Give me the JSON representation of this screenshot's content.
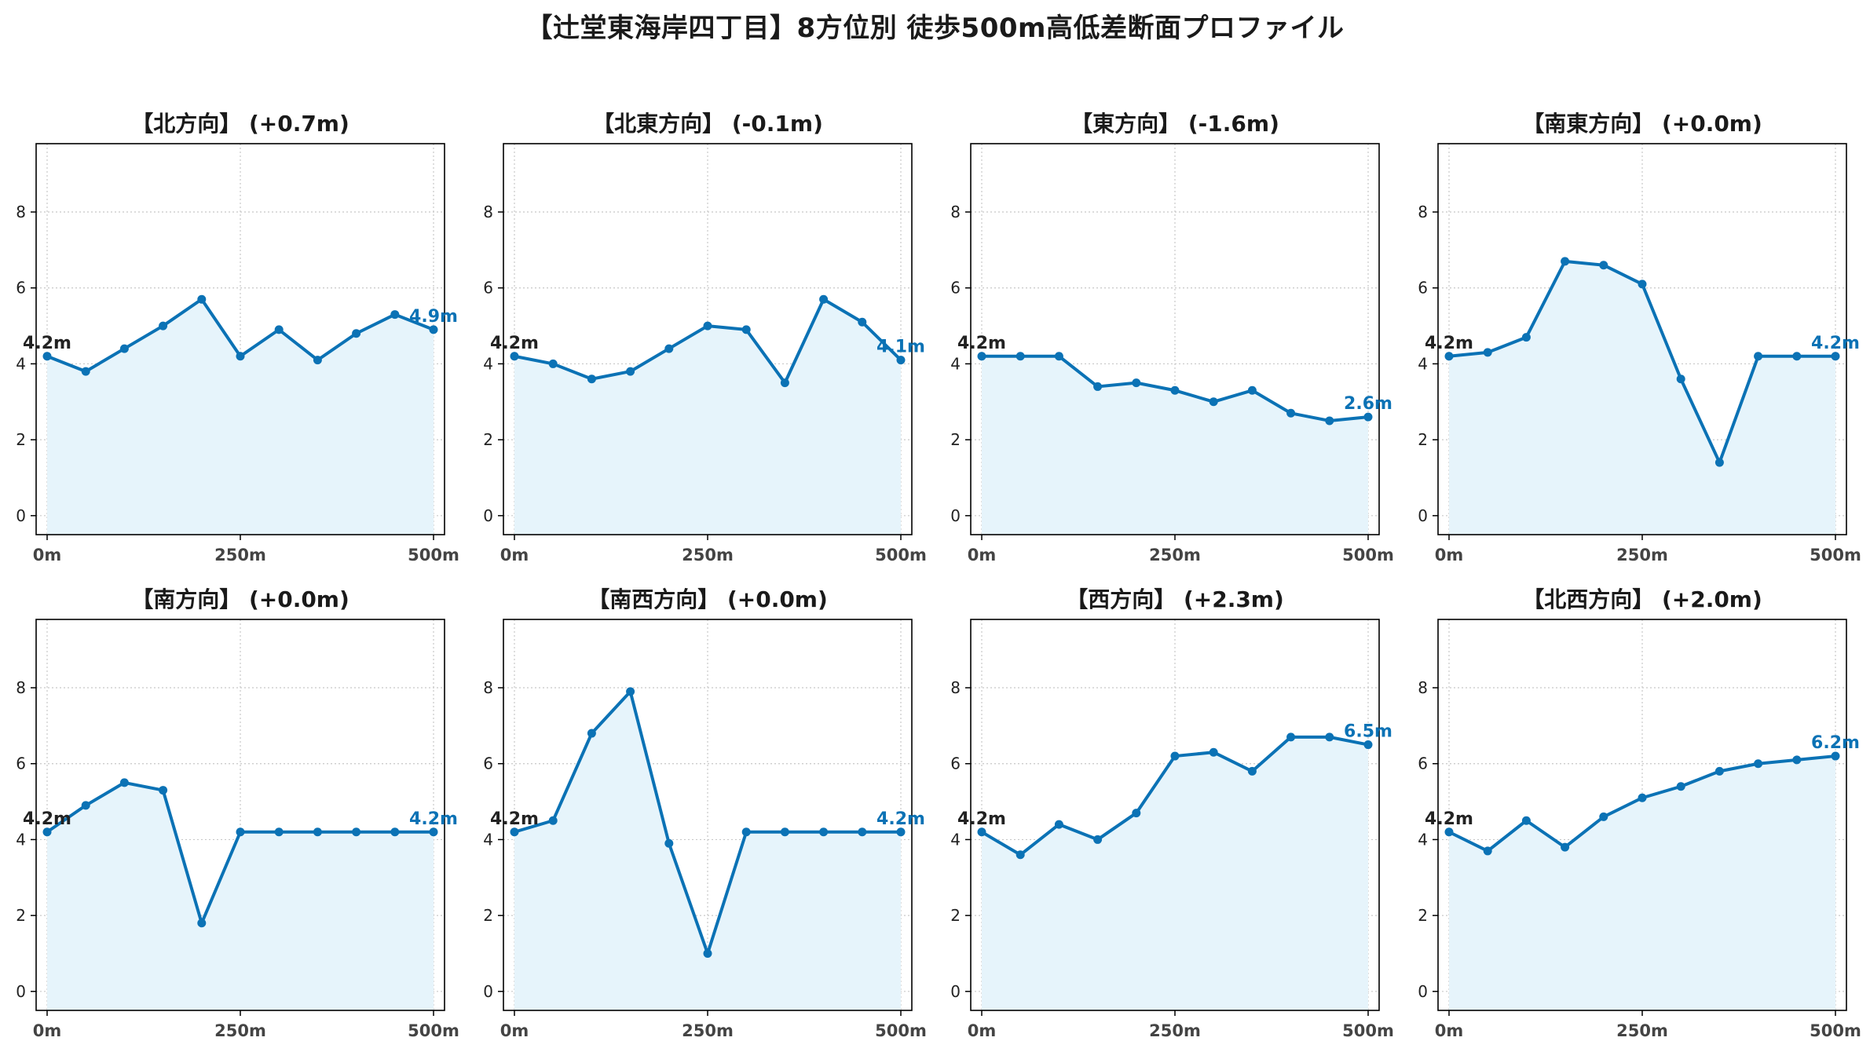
{
  "title": "【辻堂東海岸四丁目】8方位別 徒歩500m高低差断面プロファイル",
  "colors": {
    "line": "#0b72b5",
    "fill": "#e6f4fb",
    "grid": "#c8c8c8",
    "axis": "#000000",
    "end_label": "#0b72b5"
  },
  "chart_data": [
    {
      "type": "area",
      "title": "【北方向】 (+0.7m)",
      "x": [
        0,
        50,
        100,
        150,
        200,
        250,
        300,
        350,
        400,
        450,
        500
      ],
      "y": [
        4.2,
        3.8,
        4.4,
        5.0,
        5.7,
        4.2,
        4.9,
        4.1,
        4.8,
        5.3,
        4.9
      ],
      "xticks": [
        "0m",
        "250m",
        "500m"
      ],
      "yticks": [
        0,
        2,
        4,
        6,
        8
      ],
      "start_label": "4.2m",
      "end_label": "4.9m",
      "xlim": [
        0,
        500
      ],
      "ylim": [
        -0.5,
        9.8
      ],
      "grid": true
    },
    {
      "type": "area",
      "title": "【北東方向】 (-0.1m)",
      "x": [
        0,
        50,
        100,
        150,
        200,
        250,
        300,
        350,
        400,
        450,
        500
      ],
      "y": [
        4.2,
        4.0,
        3.6,
        3.8,
        4.4,
        5.0,
        4.9,
        3.5,
        5.7,
        5.1,
        4.1
      ],
      "xticks": [
        "0m",
        "250m",
        "500m"
      ],
      "yticks": [
        0,
        2,
        4,
        6,
        8
      ],
      "start_label": "4.2m",
      "end_label": "4.1m",
      "xlim": [
        0,
        500
      ],
      "ylim": [
        -0.5,
        9.8
      ],
      "grid": true
    },
    {
      "type": "area",
      "title": "【東方向】 (-1.6m)",
      "x": [
        0,
        50,
        100,
        150,
        200,
        250,
        300,
        350,
        400,
        450,
        500
      ],
      "y": [
        4.2,
        4.2,
        4.2,
        3.4,
        3.5,
        3.3,
        3.0,
        3.3,
        2.7,
        2.5,
        2.6
      ],
      "xticks": [
        "0m",
        "250m",
        "500m"
      ],
      "yticks": [
        0,
        2,
        4,
        6,
        8
      ],
      "start_label": "4.2m",
      "end_label": "2.6m",
      "xlim": [
        0,
        500
      ],
      "ylim": [
        -0.5,
        9.8
      ],
      "grid": true
    },
    {
      "type": "area",
      "title": "【南東方向】 (+0.0m)",
      "x": [
        0,
        50,
        100,
        150,
        200,
        250,
        300,
        350,
        400,
        450,
        500
      ],
      "y": [
        4.2,
        4.3,
        4.7,
        6.7,
        6.6,
        6.1,
        3.6,
        1.4,
        4.2,
        4.2,
        4.2
      ],
      "xticks": [
        "0m",
        "250m",
        "500m"
      ],
      "yticks": [
        0,
        2,
        4,
        6,
        8
      ],
      "start_label": "4.2m",
      "end_label": "4.2m",
      "xlim": [
        0,
        500
      ],
      "ylim": [
        -0.5,
        9.8
      ],
      "grid": true
    },
    {
      "type": "area",
      "title": "【南方向】 (+0.0m)",
      "x": [
        0,
        50,
        100,
        150,
        200,
        250,
        300,
        350,
        400,
        450,
        500
      ],
      "y": [
        4.2,
        4.9,
        5.5,
        5.3,
        1.8,
        4.2,
        4.2,
        4.2,
        4.2,
        4.2,
        4.2
      ],
      "xticks": [
        "0m",
        "250m",
        "500m"
      ],
      "yticks": [
        0,
        2,
        4,
        6,
        8
      ],
      "start_label": "4.2m",
      "end_label": "4.2m",
      "xlim": [
        0,
        500
      ],
      "ylim": [
        -0.5,
        9.8
      ],
      "grid": true
    },
    {
      "type": "area",
      "title": "【南西方向】 (+0.0m)",
      "x": [
        0,
        50,
        100,
        150,
        200,
        250,
        300,
        350,
        400,
        450,
        500
      ],
      "y": [
        4.2,
        4.5,
        6.8,
        7.9,
        3.9,
        1.0,
        4.2,
        4.2,
        4.2,
        4.2,
        4.2
      ],
      "xticks": [
        "0m",
        "250m",
        "500m"
      ],
      "yticks": [
        0,
        2,
        4,
        6,
        8
      ],
      "start_label": "4.2m",
      "end_label": "4.2m",
      "xlim": [
        0,
        500
      ],
      "ylim": [
        -0.5,
        9.8
      ],
      "grid": true
    },
    {
      "type": "area",
      "title": "【西方向】 (+2.3m)",
      "x": [
        0,
        50,
        100,
        150,
        200,
        250,
        300,
        350,
        400,
        450,
        500
      ],
      "y": [
        4.2,
        3.6,
        4.4,
        4.0,
        4.7,
        6.2,
        6.3,
        5.8,
        6.7,
        6.7,
        6.5
      ],
      "xticks": [
        "0m",
        "250m",
        "500m"
      ],
      "yticks": [
        0,
        2,
        4,
        6,
        8
      ],
      "start_label": "4.2m",
      "end_label": "6.5m",
      "xlim": [
        0,
        500
      ],
      "ylim": [
        -0.5,
        9.8
      ],
      "grid": true
    },
    {
      "type": "area",
      "title": "【北西方向】 (+2.0m)",
      "x": [
        0,
        50,
        100,
        150,
        200,
        250,
        300,
        350,
        400,
        450,
        500
      ],
      "y": [
        4.2,
        3.7,
        4.5,
        3.8,
        4.6,
        5.1,
        5.4,
        5.8,
        6.0,
        6.1,
        6.2
      ],
      "xticks": [
        "0m",
        "250m",
        "500m"
      ],
      "yticks": [
        0,
        2,
        4,
        6,
        8
      ],
      "start_label": "4.2m",
      "end_label": "6.2m",
      "xlim": [
        0,
        500
      ],
      "ylim": [
        -0.5,
        9.8
      ],
      "grid": true
    }
  ]
}
